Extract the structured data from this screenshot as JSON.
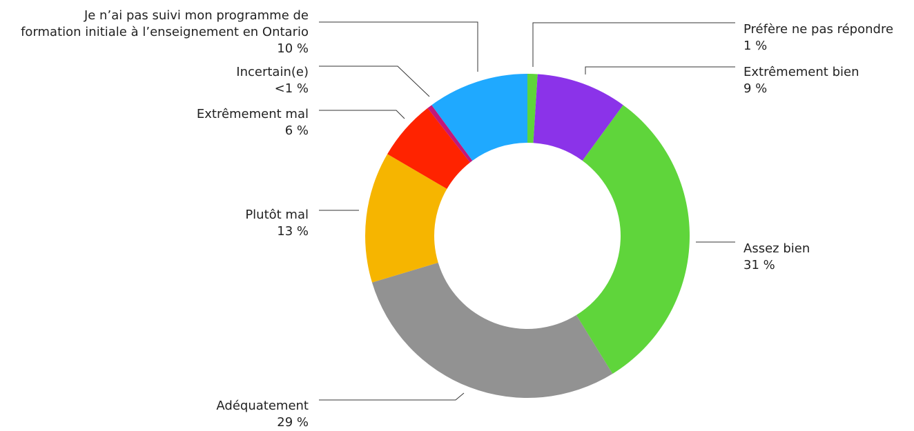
{
  "chart_data": {
    "type": "donut",
    "categories": [
      "Préfère ne pas répondre",
      "Extrêmement bien",
      "Assez bien",
      "Adéquatement",
      "Plutôt mal",
      "Extrêmement mal",
      "Incertain(e)",
      "Je n’ai pas suivi mon programme de formation initiale à l’enseignement en Ontario"
    ],
    "values": [
      1,
      9,
      31,
      29,
      13,
      6,
      0.5,
      10
    ],
    "value_labels": [
      "1 %",
      "9 %",
      "31 %",
      "29 %",
      "13 %",
      "6 %",
      "<1 %",
      "10 %"
    ],
    "colors": [
      "#5fd53b",
      "#8b33e9",
      "#5fd53b",
      "#929292",
      "#f6b500",
      "#ff2300",
      "#c2187a",
      "#1fa9ff"
    ]
  }
}
